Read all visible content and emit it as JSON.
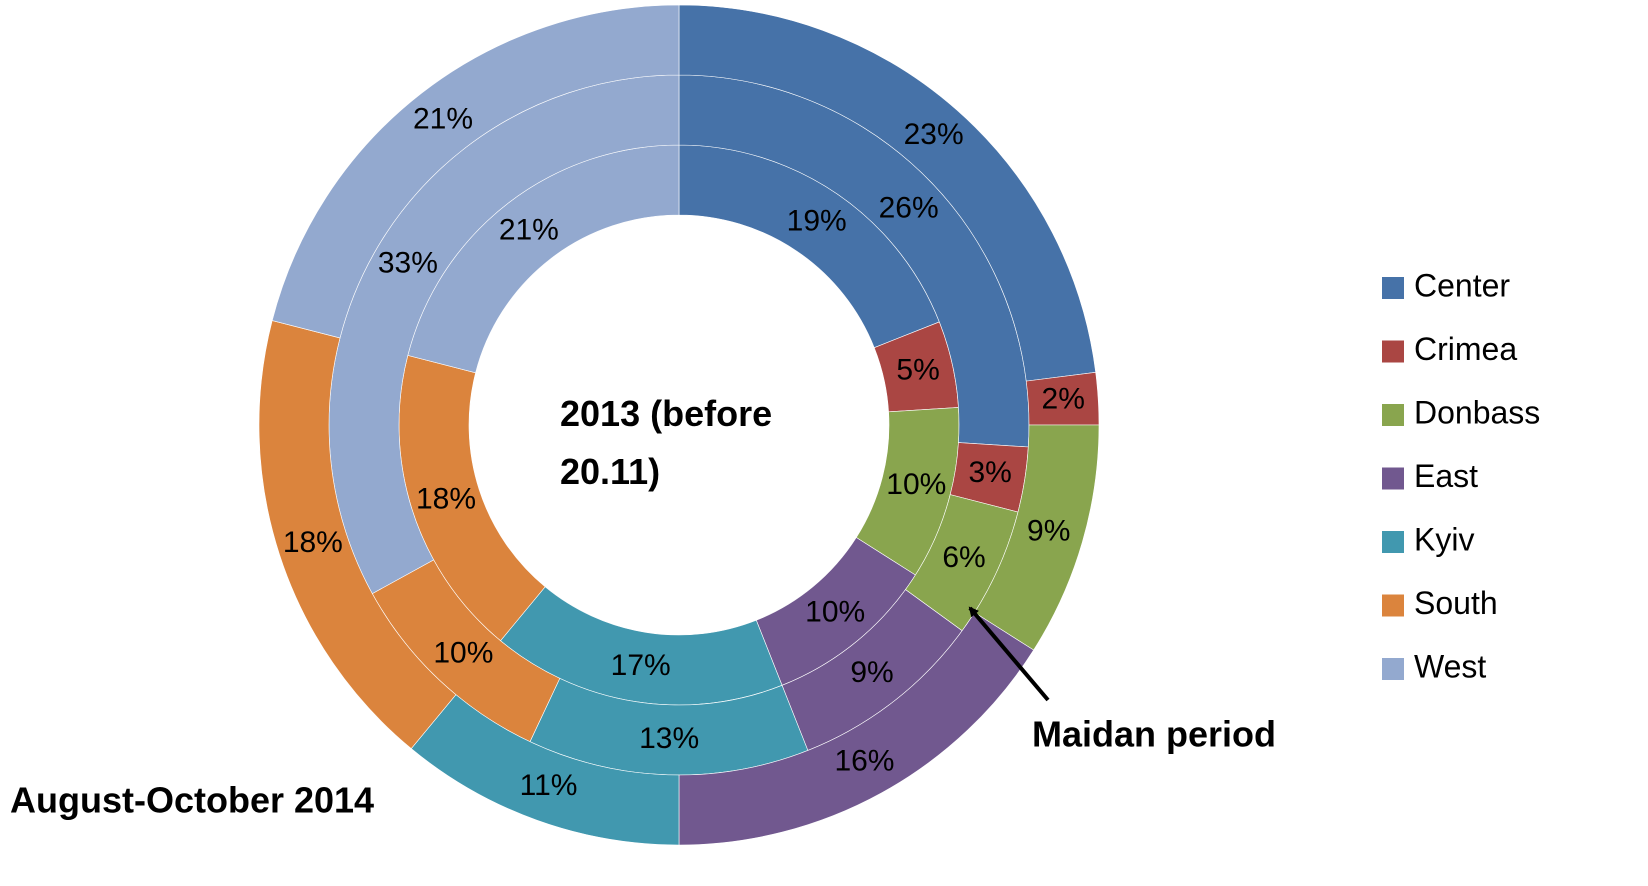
{
  "chart_data": {
    "type": "donut",
    "categories": [
      "Center",
      "Crimea",
      "Donbass",
      "East",
      "Kyiv",
      "South",
      "West"
    ],
    "colors": [
      "#4672a8",
      "#aa4643",
      "#89a54e",
      "#71588f",
      "#4198af",
      "#db843d",
      "#93a9cf"
    ],
    "series": [
      {
        "name": "2013 (before 20.11)",
        "values": [
          19,
          5,
          10,
          10,
          17,
          18,
          21
        ],
        "value_labels": [
          "19%",
          "5%",
          "10%",
          "10%",
          "17%",
          "18%",
          "21%"
        ]
      },
      {
        "name": "Maidan period",
        "values": [
          26,
          3,
          6,
          9,
          13,
          10,
          33
        ],
        "value_labels": [
          "26%",
          "3%",
          "6%",
          "9%",
          "13%",
          "10%",
          "33%"
        ]
      },
      {
        "name": "August-October 2014",
        "values": [
          23,
          2,
          9,
          16,
          11,
          18,
          21
        ],
        "value_labels": [
          "23%",
          "2%",
          "9%",
          "16%",
          "11%",
          "18%",
          "21%"
        ]
      }
    ],
    "legend": "right"
  }
}
